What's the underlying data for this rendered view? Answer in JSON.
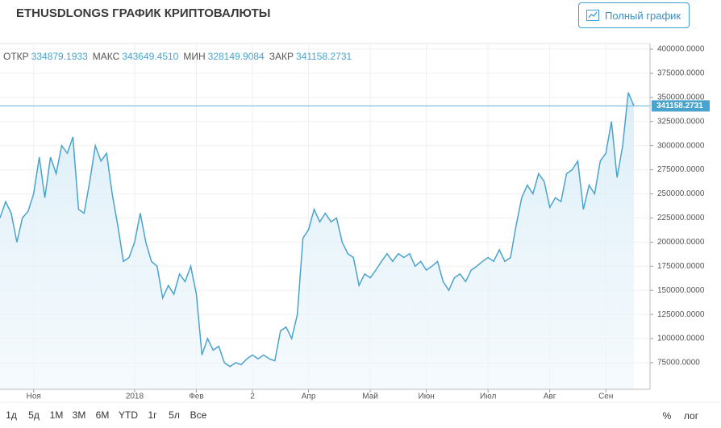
{
  "header": {
    "title": "ETHUSDLONGS ГРАФИК КРИПТОВАЛЮТЫ",
    "button": "Полный график"
  },
  "ohlc": [
    {
      "label": "ОТКР",
      "value": "334879.1933"
    },
    {
      "label": "МАКС",
      "value": "343649.4510"
    },
    {
      "label": "МИН",
      "value": "328149.9084"
    },
    {
      "label": "ЗАКР",
      "value": "341158.2731"
    }
  ],
  "chart_data": {
    "type": "area",
    "color": "#4aa3cc",
    "grid": true,
    "xlim": [
      0,
      113
    ],
    "xticks": [
      {
        "value": 6,
        "label": "Ноя"
      },
      {
        "value": 24,
        "label": "2018"
      },
      {
        "value": 35,
        "label": "Фев"
      },
      {
        "value": 45,
        "label": "2"
      },
      {
        "value": 55,
        "label": "Апр"
      },
      {
        "value": 66,
        "label": "Май"
      },
      {
        "value": 76,
        "label": "Июн"
      },
      {
        "value": 87,
        "label": "Июл"
      },
      {
        "value": 98,
        "label": "Авг"
      },
      {
        "value": 108,
        "label": "Сен"
      }
    ],
    "ylim": [
      47400,
      405000
    ],
    "yticks": [
      {
        "value": 400000,
        "label": "400000.0000"
      },
      {
        "value": 375000,
        "label": "375000.0000"
      },
      {
        "value": 350000,
        "label": "350000.0000"
      },
      {
        "value": 325000,
        "label": "325000.0000"
      },
      {
        "value": 300000,
        "label": "300000.0000"
      },
      {
        "value": 275000,
        "label": "275000.0000"
      },
      {
        "value": 250000,
        "label": "250000.0000"
      },
      {
        "value": 225000,
        "label": "225000.0000"
      },
      {
        "value": 200000,
        "label": "200000.0000"
      },
      {
        "value": 175000,
        "label": "175000.0000"
      },
      {
        "value": 150000,
        "label": "150000.0000"
      },
      {
        "value": 125000,
        "label": "125000.0000"
      },
      {
        "value": 100000,
        "label": "100000.0000"
      },
      {
        "value": 75000,
        "label": "75000.0000"
      }
    ],
    "values": [
      225000,
      242000,
      230000,
      200000,
      225000,
      232000,
      250000,
      288000,
      246000,
      288000,
      271000,
      300000,
      292000,
      309000,
      234000,
      230000,
      263000,
      300000,
      284000,
      292000,
      250000,
      217000,
      180000,
      184000,
      200000,
      230000,
      200000,
      180000,
      175000,
      142000,
      155000,
      146000,
      167000,
      159000,
      175000,
      146000,
      83000,
      100000,
      88000,
      92000,
      75000,
      71000,
      75000,
      73000,
      79000,
      83000,
      79000,
      83000,
      79000,
      77000,
      108000,
      112000,
      100000,
      125000,
      204000,
      213000,
      234000,
      221000,
      230000,
      221000,
      225000,
      200000,
      188000,
      184000,
      155000,
      167000,
      163000,
      171000,
      180000,
      188000,
      180000,
      188000,
      184000,
      188000,
      175000,
      180000,
      171000,
      175000,
      180000,
      159000,
      150000,
      163000,
      167000,
      159000,
      171000,
      175000,
      180000,
      184000,
      180000,
      192000,
      180000,
      184000,
      217000,
      246000,
      259000,
      250000,
      271000,
      263000,
      236000,
      246000,
      242000,
      271000,
      275000,
      284000,
      234000,
      259000,
      250000,
      284000,
      292000,
      325000,
      267000,
      300000,
      355000,
      341158.2731
    ]
  },
  "ranges": [
    "1д",
    "5д",
    "1М",
    "3М",
    "6М",
    "YTD",
    "1г",
    "5л",
    "Все"
  ],
  "scale_options": [
    "%",
    "лог"
  ]
}
